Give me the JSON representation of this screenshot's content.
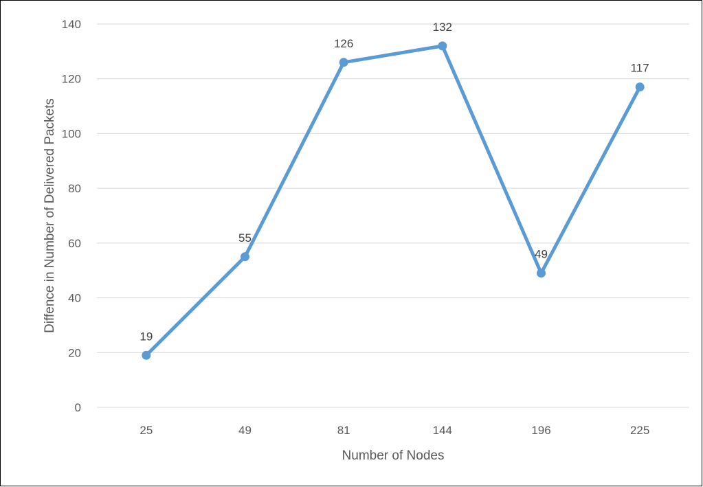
{
  "chart_data": {
    "type": "line",
    "title": "",
    "xlabel": "Number of Nodes",
    "ylabel": "Diffence in Number of Delivered Packets",
    "categories": [
      "25",
      "49",
      "81",
      "144",
      "196",
      "225"
    ],
    "series": [
      {
        "values": [
          19,
          55,
          126,
          132,
          49,
          117
        ],
        "color": "#5B9BD5",
        "marker": "circle",
        "data_labels": [
          "19",
          "55",
          "126",
          "132",
          "49",
          "117"
        ]
      }
    ],
    "ylim": [
      0,
      140
    ],
    "yticks": [
      0,
      20,
      40,
      60,
      80,
      100,
      120,
      140
    ],
    "grid": true,
    "legend": "none",
    "colors": {
      "gridline": "#D9D9D9",
      "axis_text": "#595959",
      "data_label": "#404040"
    }
  }
}
